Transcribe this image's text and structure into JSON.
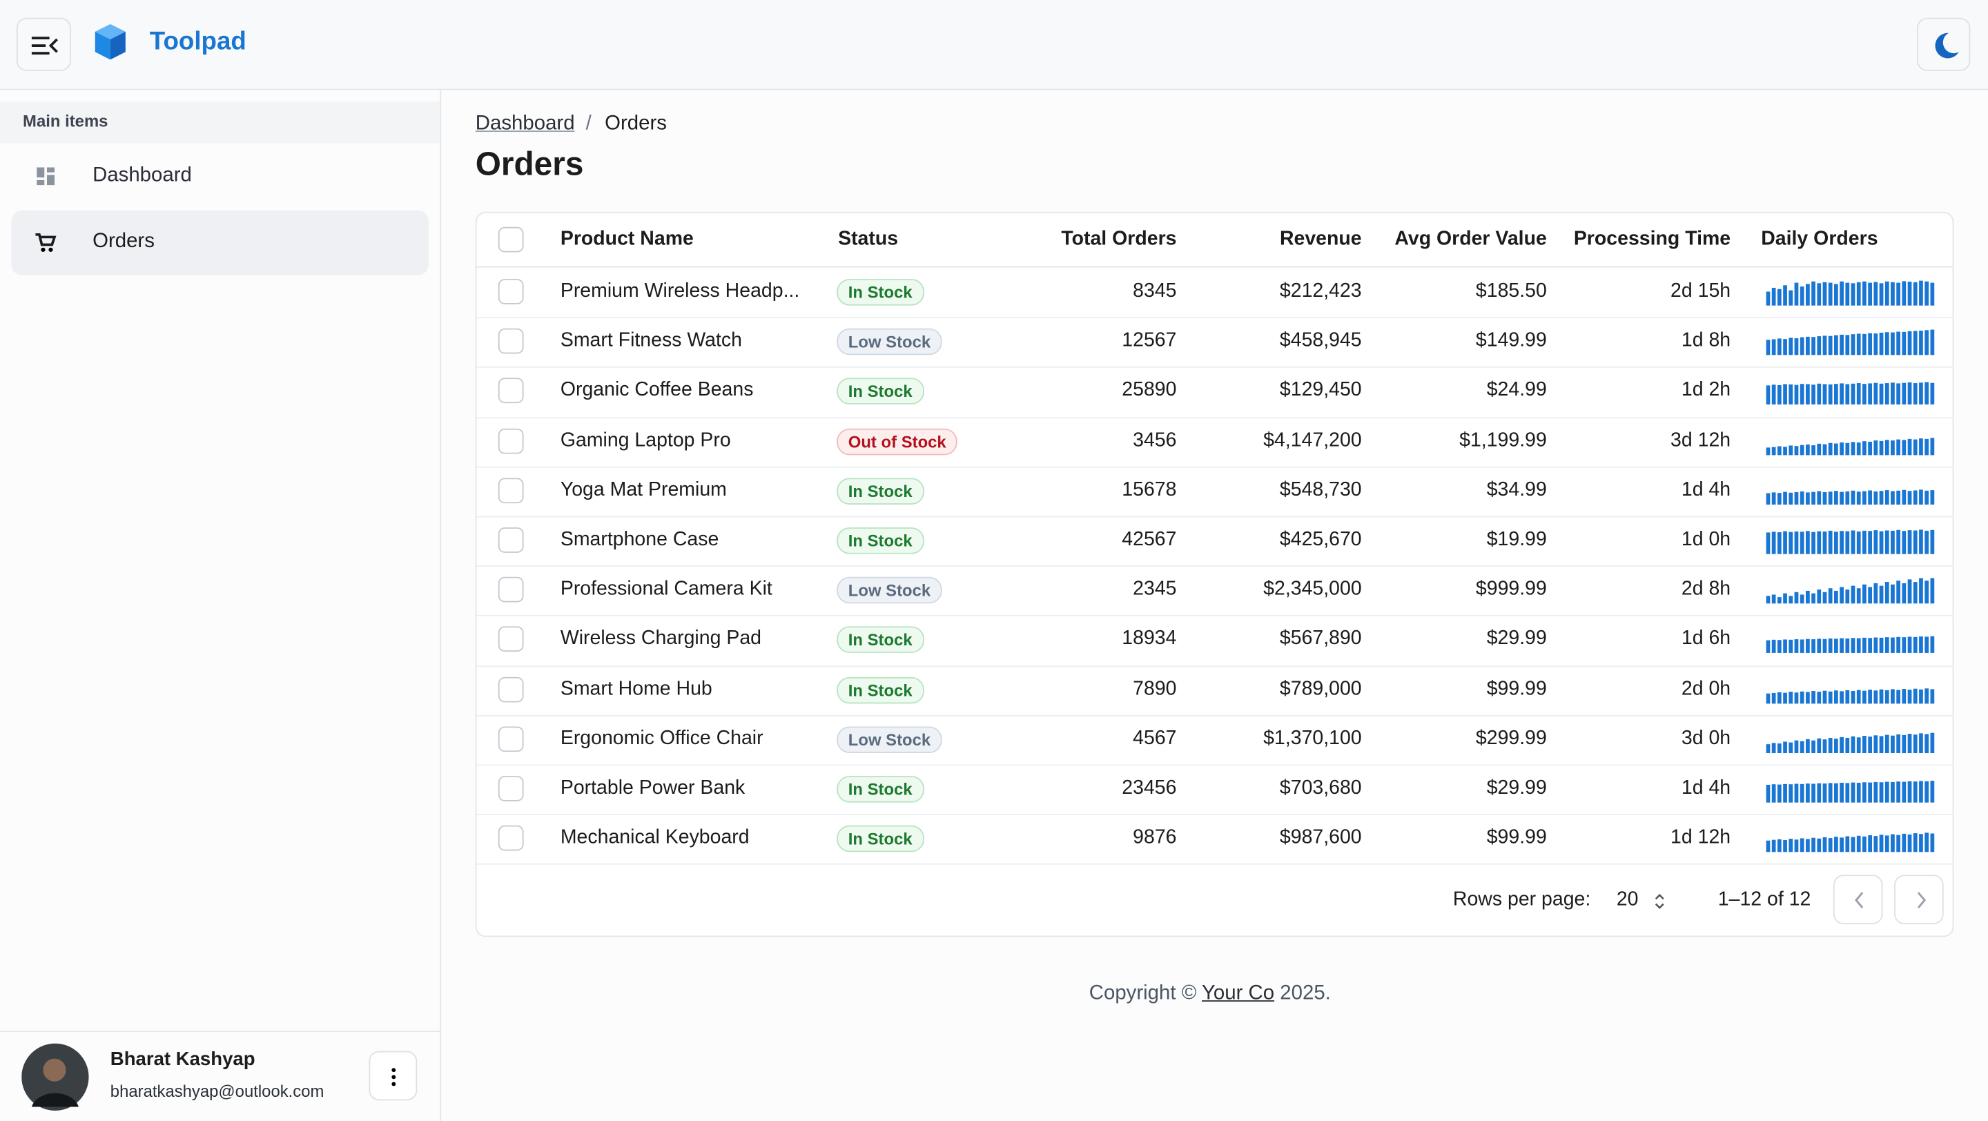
{
  "header": {
    "title": "Toolpad"
  },
  "sidebar": {
    "section": "Main items",
    "items": [
      "Dashboard",
      "Orders"
    ],
    "user": {
      "name": "Bharat Kashyap",
      "email": "bharatkashyap@outlook.com"
    }
  },
  "breadcrumb": {
    "items": [
      "Dashboard",
      "Orders"
    ],
    "separator": "/"
  },
  "page_title": "Orders",
  "table": {
    "columns": [
      "Product Name",
      "Status",
      "Total Orders",
      "Revenue",
      "Avg Order Value",
      "Processing Time",
      "Daily Orders"
    ],
    "sparkline_ylim": [
      0,
      100
    ],
    "rows": [
      {
        "name": "Premium Wireless Headp...",
        "status": "In Stock",
        "status_color": "success",
        "total_orders": 8345,
        "revenue": "$212,423",
        "avg_order_value": "$185.50",
        "processing_time": "2d 15h",
        "daily_orders": [
          55,
          70,
          65,
          80,
          60,
          90,
          75,
          85,
          95,
          88,
          92,
          90,
          85,
          95,
          90,
          88,
          92,
          95,
          90,
          93,
          88,
          95,
          92,
          90,
          96,
          94,
          92,
          98,
          95,
          90
        ]
      },
      {
        "name": "Smart Fitness Watch",
        "status": "Low Stock",
        "status_color": "neutral",
        "total_orders": 12567,
        "revenue": "$458,945",
        "avg_order_value": "$149.99",
        "processing_time": "1d 8h",
        "daily_orders": [
          60,
          62,
          65,
          63,
          68,
          66,
          70,
          72,
          71,
          74,
          76,
          75,
          78,
          80,
          79,
          82,
          84,
          83,
          86,
          85,
          88,
          90,
          89,
          92,
          91,
          94,
          95,
          96,
          98,
          100
        ]
      },
      {
        "name": "Organic Coffee Beans",
        "status": "In Stock",
        "status_color": "success",
        "total_orders": 25890,
        "revenue": "$129,450",
        "avg_order_value": "$24.99",
        "processing_time": "1d 2h",
        "daily_orders": [
          75,
          78,
          76,
          80,
          79,
          77,
          81,
          80,
          78,
          82,
          80,
          79,
          81,
          83,
          80,
          82,
          84,
          81,
          83,
          85,
          82,
          84,
          86,
          83,
          85,
          87,
          84,
          86,
          88,
          85
        ]
      },
      {
        "name": "Gaming Laptop Pro",
        "status": "Out of Stock",
        "status_color": "error",
        "total_orders": 3456,
        "revenue": "$4,147,200",
        "avg_order_value": "$1,199.99",
        "processing_time": "3d 12h",
        "daily_orders": [
          30,
          32,
          35,
          33,
          38,
          36,
          40,
          42,
          39,
          45,
          43,
          48,
          46,
          50,
          48,
          52,
          50,
          55,
          53,
          58,
          56,
          60,
          58,
          62,
          60,
          64,
          62,
          66,
          64,
          68
        ]
      },
      {
        "name": "Yoga Mat Premium",
        "status": "In Stock",
        "status_color": "success",
        "total_orders": 15678,
        "revenue": "$548,730",
        "avg_order_value": "$34.99",
        "processing_time": "1d 4h",
        "daily_orders": [
          45,
          48,
          46,
          50,
          47,
          49,
          52,
          48,
          50,
          53,
          49,
          51,
          54,
          50,
          52,
          55,
          51,
          53,
          56,
          52,
          54,
          57,
          53,
          55,
          58,
          54,
          56,
          59,
          55,
          57
        ]
      },
      {
        "name": "Smartphone Case",
        "status": "In Stock",
        "status_color": "success",
        "total_orders": 42567,
        "revenue": "$425,670",
        "avg_order_value": "$19.99",
        "processing_time": "1d 0h",
        "daily_orders": [
          85,
          88,
          86,
          90,
          87,
          89,
          88,
          91,
          87,
          90,
          89,
          92,
          88,
          91,
          90,
          93,
          89,
          92,
          91,
          94,
          90,
          93,
          92,
          95,
          91,
          94,
          93,
          96,
          92,
          95
        ]
      },
      {
        "name": "Professional Camera Kit",
        "status": "Low Stock",
        "status_color": "neutral",
        "total_orders": 2345,
        "revenue": "$2,345,000",
        "avg_order_value": "$999.99",
        "processing_time": "2d 8h",
        "daily_orders": [
          30,
          35,
          25,
          40,
          30,
          45,
          35,
          50,
          40,
          55,
          45,
          60,
          50,
          65,
          55,
          70,
          60,
          75,
          65,
          80,
          70,
          85,
          75,
          90,
          80,
          95,
          85,
          100,
          90,
          100
        ]
      },
      {
        "name": "Wireless Charging Pad",
        "status": "In Stock",
        "status_color": "success",
        "total_orders": 18934,
        "revenue": "$567,890",
        "avg_order_value": "$29.99",
        "processing_time": "1d 6h",
        "daily_orders": [
          50,
          52,
          51,
          53,
          52,
          54,
          53,
          55,
          54,
          56,
          55,
          57,
          56,
          58,
          57,
          59,
          58,
          60,
          59,
          61,
          60,
          62,
          61,
          63,
          62,
          64,
          63,
          65,
          64,
          66
        ]
      },
      {
        "name": "Smart Home Hub",
        "status": "In Stock",
        "status_color": "success",
        "total_orders": 7890,
        "revenue": "$789,000",
        "avg_order_value": "$99.99",
        "processing_time": "2d 0h",
        "daily_orders": [
          40,
          42,
          45,
          43,
          47,
          44,
          48,
          46,
          50,
          47,
          51,
          48,
          52,
          49,
          53,
          50,
          54,
          51,
          55,
          52,
          56,
          53,
          57,
          54,
          58,
          55,
          59,
          56,
          60,
          57
        ]
      },
      {
        "name": "Ergonomic Office Chair",
        "status": "Low Stock",
        "status_color": "neutral",
        "total_orders": 4567,
        "revenue": "$1,370,100",
        "avg_order_value": "$299.99",
        "processing_time": "3d 0h",
        "daily_orders": [
          35,
          40,
          38,
          45,
          42,
          50,
          47,
          55,
          50,
          58,
          54,
          60,
          57,
          63,
          60,
          66,
          62,
          68,
          65,
          70,
          67,
          72,
          69,
          74,
          71,
          76,
          73,
          78,
          75,
          80
        ]
      },
      {
        "name": "Portable Power Bank",
        "status": "In Stock",
        "status_color": "success",
        "total_orders": 23456,
        "revenue": "$703,680",
        "avg_order_value": "$29.99",
        "processing_time": "1d 4h",
        "daily_orders": [
          70,
          72,
          71,
          73,
          72,
          74,
          73,
          75,
          74,
          76,
          75,
          77,
          76,
          78,
          77,
          79,
          78,
          80,
          79,
          81,
          80,
          82,
          81,
          83,
          82,
          84,
          83,
          85,
          84,
          86
        ]
      },
      {
        "name": "Mechanical Keyboard",
        "status": "In Stock",
        "status_color": "success",
        "total_orders": 9876,
        "revenue": "$987,600",
        "avg_order_value": "$99.99",
        "processing_time": "1d 12h",
        "daily_orders": [
          45,
          48,
          50,
          47,
          52,
          49,
          54,
          51,
          56,
          53,
          58,
          55,
          60,
          57,
          62,
          59,
          64,
          61,
          66,
          63,
          68,
          65,
          70,
          67,
          72,
          69,
          74,
          71,
          76,
          73
        ]
      }
    ]
  },
  "pagination": {
    "rows_per_page_label": "Rows per page:",
    "rows_per_page": 20,
    "range": "1–12 of 12"
  },
  "footer": {
    "prefix": "Copyright ©",
    "company": "Your Co",
    "suffix": "2025."
  }
}
